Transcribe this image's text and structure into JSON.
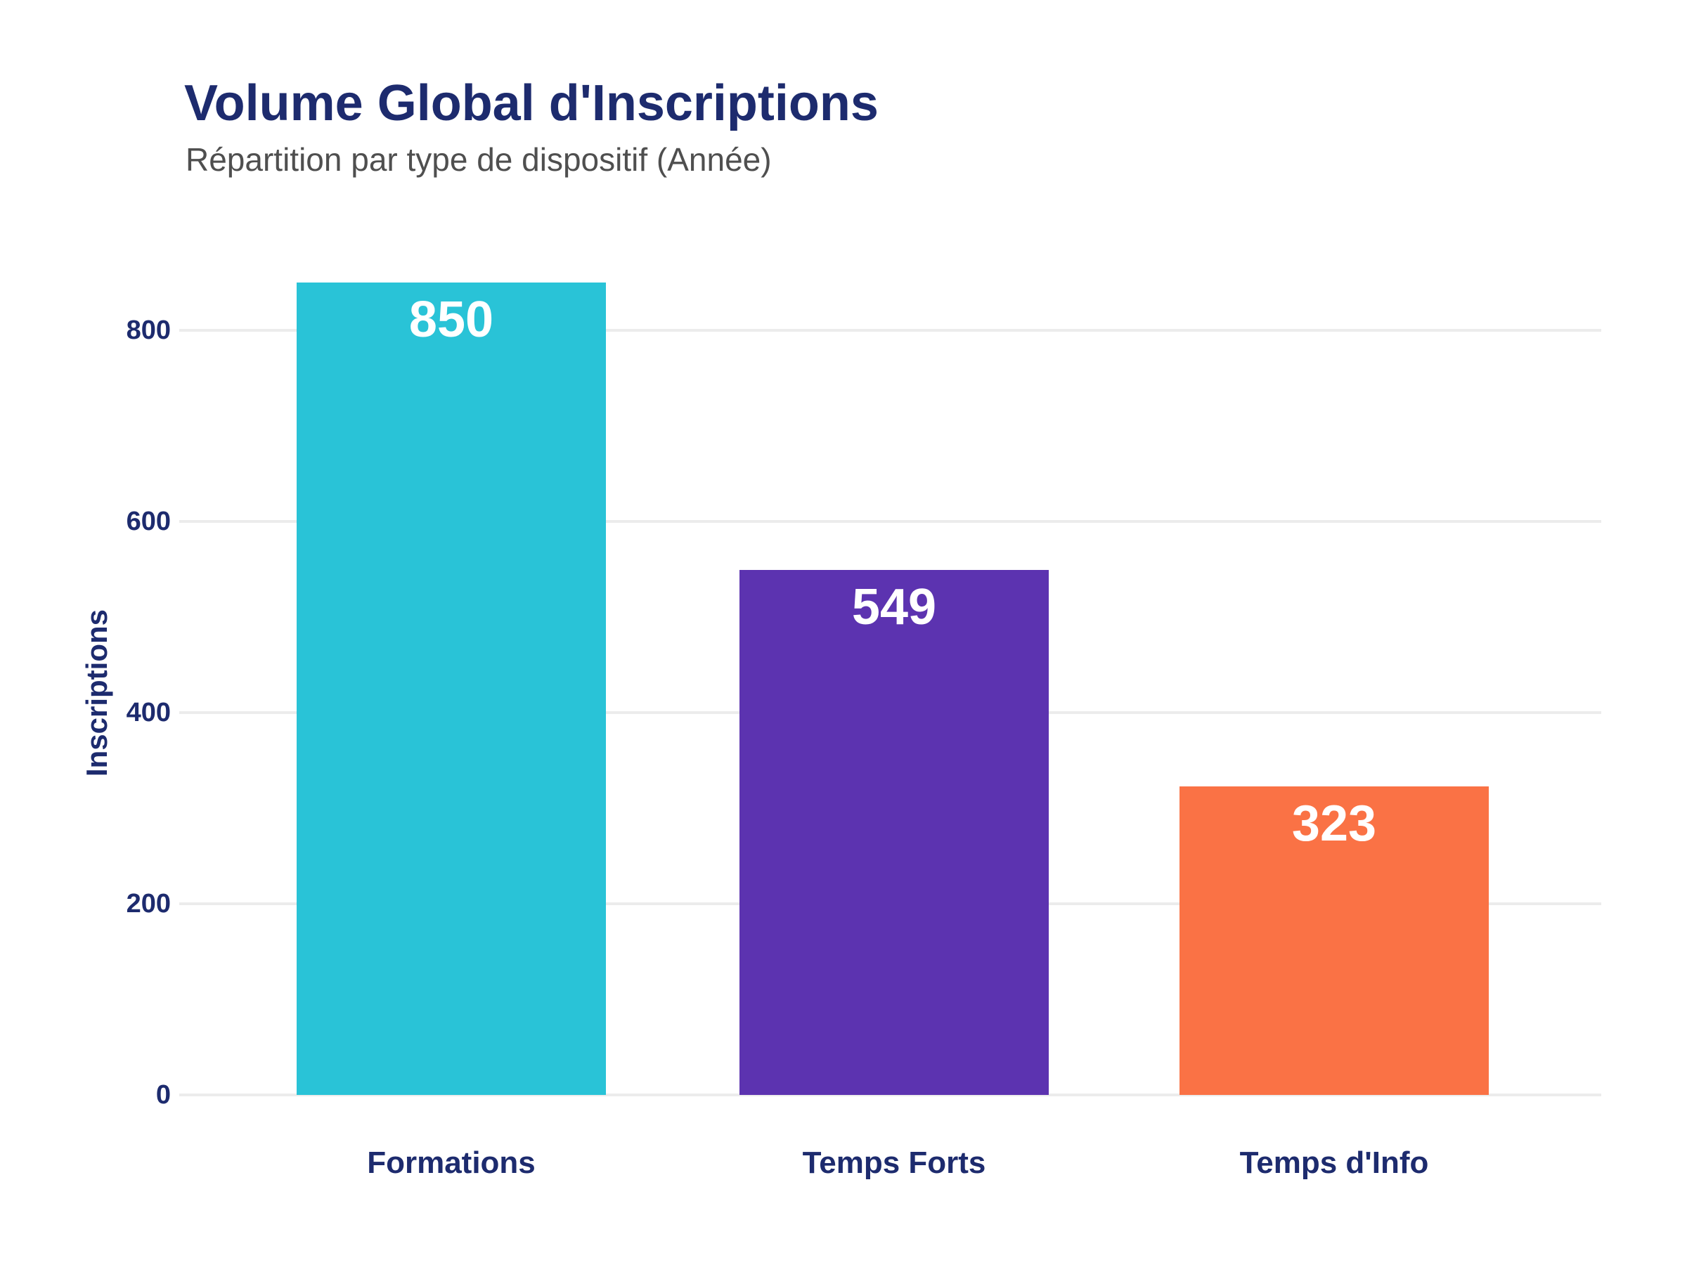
{
  "page": {
    "title": "Volume Global d'Inscriptions",
    "subtitle": "Répartition par type de dispositif (Année)"
  },
  "chart_data": {
    "type": "bar",
    "title": "Volume Global d'Inscriptions",
    "subtitle": "Répartition par type de dispositif (Année)",
    "categories": [
      "Formations",
      "Temps Forts",
      "Temps d'Info"
    ],
    "values": [
      850,
      549,
      323
    ],
    "bar_colors": [
      "#29c3d7",
      "#5c33b0",
      "#fa7245"
    ],
    "value_label_color": "#ffffff",
    "xlabel": "",
    "ylabel": "Inscriptions",
    "yticks": [
      0,
      200,
      400,
      600,
      800
    ],
    "ylim": [
      0,
      880
    ],
    "grid": "horizontal-only",
    "legend": "none",
    "value_label_position": "inside-top"
  },
  "colors": {
    "background": "#ffffff",
    "title_navy": "#1d2b6e",
    "subtitle_gray": "#4f4f4f",
    "axis_text_navy": "#1d2b6e",
    "gridline_gray": "#ececec"
  }
}
